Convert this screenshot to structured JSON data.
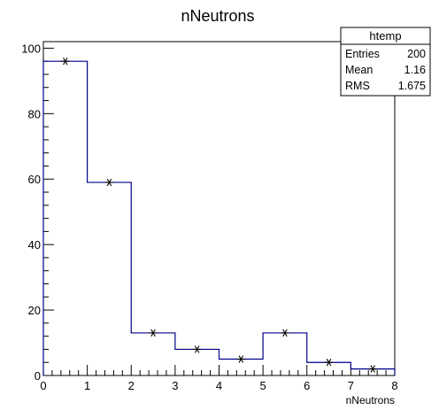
{
  "chart_data": {
    "type": "bar",
    "title": "nNeutrons",
    "xlabel": "nNeutrons",
    "ylabel": "",
    "xlim": [
      0,
      8
    ],
    "ylim": [
      0,
      102
    ],
    "x_ticks": [
      "0",
      "1",
      "2",
      "3",
      "4",
      "5",
      "6",
      "7",
      "8"
    ],
    "y_ticks": [
      "0",
      "20",
      "40",
      "60",
      "80",
      "100"
    ],
    "bin_edges": [
      0,
      1,
      2,
      3,
      4,
      5,
      6,
      7,
      8
    ],
    "series": [
      {
        "values": [
          96,
          59,
          13,
          8,
          5,
          13,
          4,
          2
        ]
      }
    ],
    "grid": false,
    "legend": "none",
    "colors": {
      "histogram_line": "#00008b",
      "marker": "#000000",
      "frame": "#000000"
    }
  },
  "stats_box": {
    "title": "htemp",
    "rows": [
      {
        "label": "Entries",
        "value": "200"
      },
      {
        "label": "Mean",
        "value": "1.16"
      },
      {
        "label": "RMS",
        "value": "1.675"
      }
    ]
  }
}
